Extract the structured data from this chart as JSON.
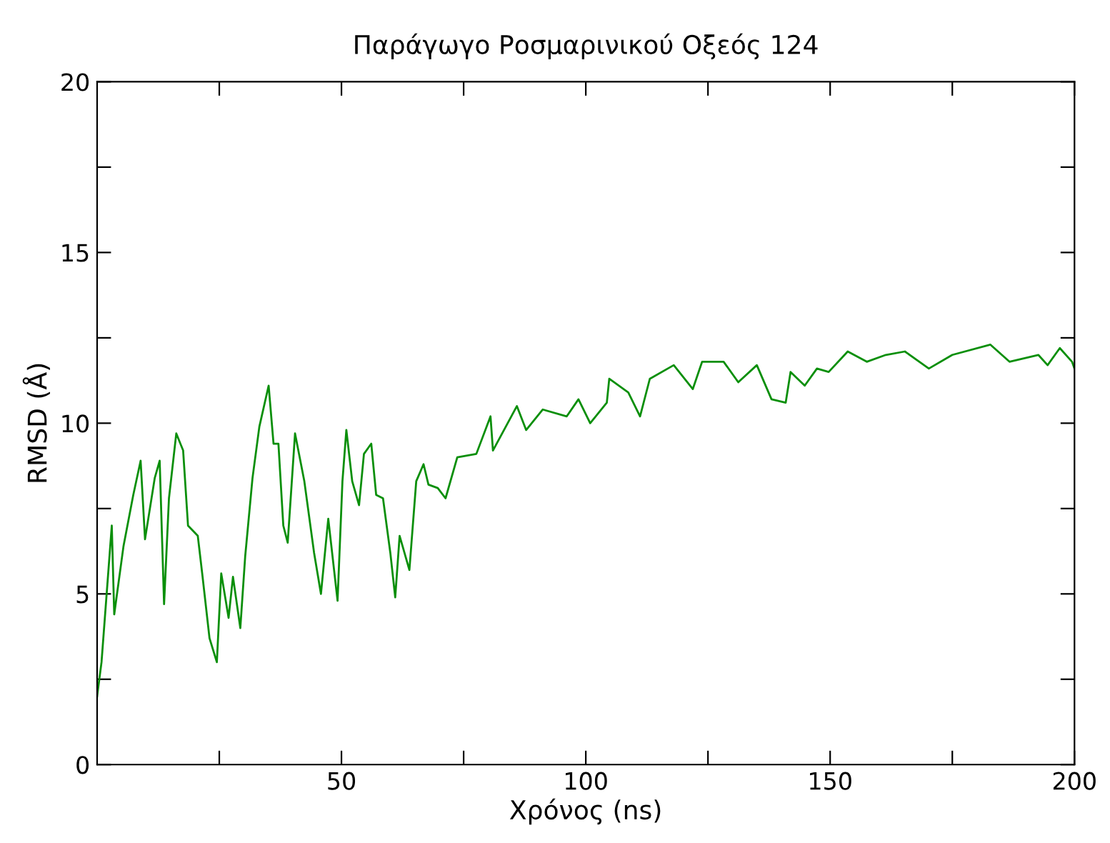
{
  "chart_data": {
    "type": "line",
    "title": "Παράγωγο Ροσμαρινικού Οξεός 124",
    "xlabel": "Χρόνος (ns)",
    "ylabel": "RMSD (Å)",
    "xlim": [
      0,
      200
    ],
    "ylim": [
      0,
      20
    ],
    "xticks": [
      {
        "value": 25,
        "label": null
      },
      50,
      {
        "value": 75,
        "label": null
      },
      100,
      {
        "value": 125,
        "label": null
      },
      150,
      {
        "value": 175,
        "label": null
      },
      200
    ],
    "yticks": [
      0,
      {
        "value": 2.5,
        "label": null
      },
      5,
      {
        "value": 7.5,
        "label": null
      },
      10,
      {
        "value": 12.5,
        "label": null
      },
      15,
      {
        "value": 17.5,
        "label": null
      },
      20
    ],
    "grid": false,
    "legend": false,
    "marker": "none",
    "line_style": "solid",
    "series": [
      {
        "color": "#0a8f0a",
        "x": [
          0,
          0.9,
          3,
          3.5,
          5.4,
          7.4,
          8.9,
          9.8,
          11.8,
          12.8,
          13.7,
          14.7,
          16.2,
          17.6,
          18.6,
          20.6,
          21.5,
          23.0,
          24.5,
          25.4,
          26.9,
          27.8,
          29.3,
          30.3,
          31.8,
          33.2,
          35.1,
          36.1,
          37.1,
          38.1,
          39.0,
          40.5,
          42.4,
          44.4,
          45.8,
          47.3,
          49.2,
          50.2,
          51.0,
          52.2,
          53.6,
          54.6,
          56.1,
          57.1,
          58.5,
          60.0,
          61.0,
          61.9,
          63.9,
          65.3,
          66.8,
          67.8,
          69.7,
          71.3,
          73.7,
          77.6,
          80.5,
          81,
          85.9,
          87.8,
          91.2,
          96.1,
          98.5,
          100.9,
          104.3,
          104.8,
          108.7,
          111.1,
          113.1,
          118.0,
          121.9,
          123.8,
          128.2,
          131.2,
          135.0,
          138.0,
          140.9,
          141.9,
          144.8,
          147.3,
          149.7,
          153.6,
          157.5,
          161.4,
          165.3,
          170.2,
          175.0,
          182.8,
          186.7,
          192.6,
          194.5,
          197.0,
          199.5,
          200
        ],
        "values": [
          2.0,
          3.0,
          7.0,
          4.4,
          6.4,
          7.9,
          8.9,
          6.6,
          8.4,
          8.9,
          4.7,
          7.8,
          9.7,
          9.2,
          7.0,
          6.7,
          5.6,
          3.7,
          3.0,
          5.6,
          4.3,
          5.5,
          4.0,
          6.1,
          8.4,
          9.9,
          11.1,
          9.4,
          9.4,
          7.0,
          6.5,
          9.7,
          8.3,
          6.2,
          5.0,
          7.2,
          4.8,
          8.3,
          9.8,
          8.3,
          7.6,
          9.1,
          9.4,
          7.9,
          7.8,
          6.2,
          4.9,
          6.7,
          5.7,
          8.3,
          8.8,
          8.2,
          8.1,
          7.8,
          9.0,
          9.1,
          10.2,
          9.2,
          10.5,
          9.8,
          10.4,
          10.2,
          10.7,
          10.0,
          10.6,
          11.3,
          10.9,
          10.2,
          11.3,
          11.7,
          11.0,
          11.8,
          11.8,
          11.2,
          11.7,
          10.7,
          10.6,
          11.5,
          11.1,
          11.6,
          11.5,
          12.1,
          11.8,
          12.0,
          12.1,
          11.6,
          12.0,
          12.3,
          11.8,
          12.0,
          11.7,
          12.2,
          11.8,
          11.6
        ]
      }
    ]
  }
}
